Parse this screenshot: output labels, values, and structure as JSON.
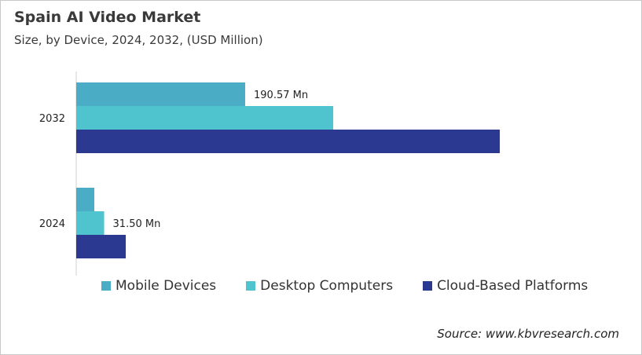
{
  "chart_data": {
    "type": "bar",
    "orientation": "horizontal",
    "title": "Spain AI Video Market",
    "subtitle": "Size, by Device, 2024, 2032, (USD Million)",
    "categories": [
      "2032",
      "2024"
    ],
    "series": [
      {
        "name": "Mobile Devices",
        "color": "#4BACC6",
        "values": [
          190.57,
          20.4
        ]
      },
      {
        "name": "Desktop Computers",
        "color": "#4FC4CF",
        "values": [
          289.9,
          31.5
        ]
      },
      {
        "name": "Cloud-Based Platforms",
        "color": "#2B3990",
        "values": [
          477.8,
          55.9
        ]
      }
    ],
    "data_labels": [
      {
        "category": "2032",
        "series": "Mobile Devices",
        "text": "190.57 Mn"
      },
      {
        "category": "2024",
        "series": "Desktop Computers",
        "text": "31.50 Mn"
      }
    ],
    "xlim": [
      0,
      600
    ],
    "grid": false,
    "legend": "bottom",
    "source": "Source: www.kbvresearch.com"
  }
}
